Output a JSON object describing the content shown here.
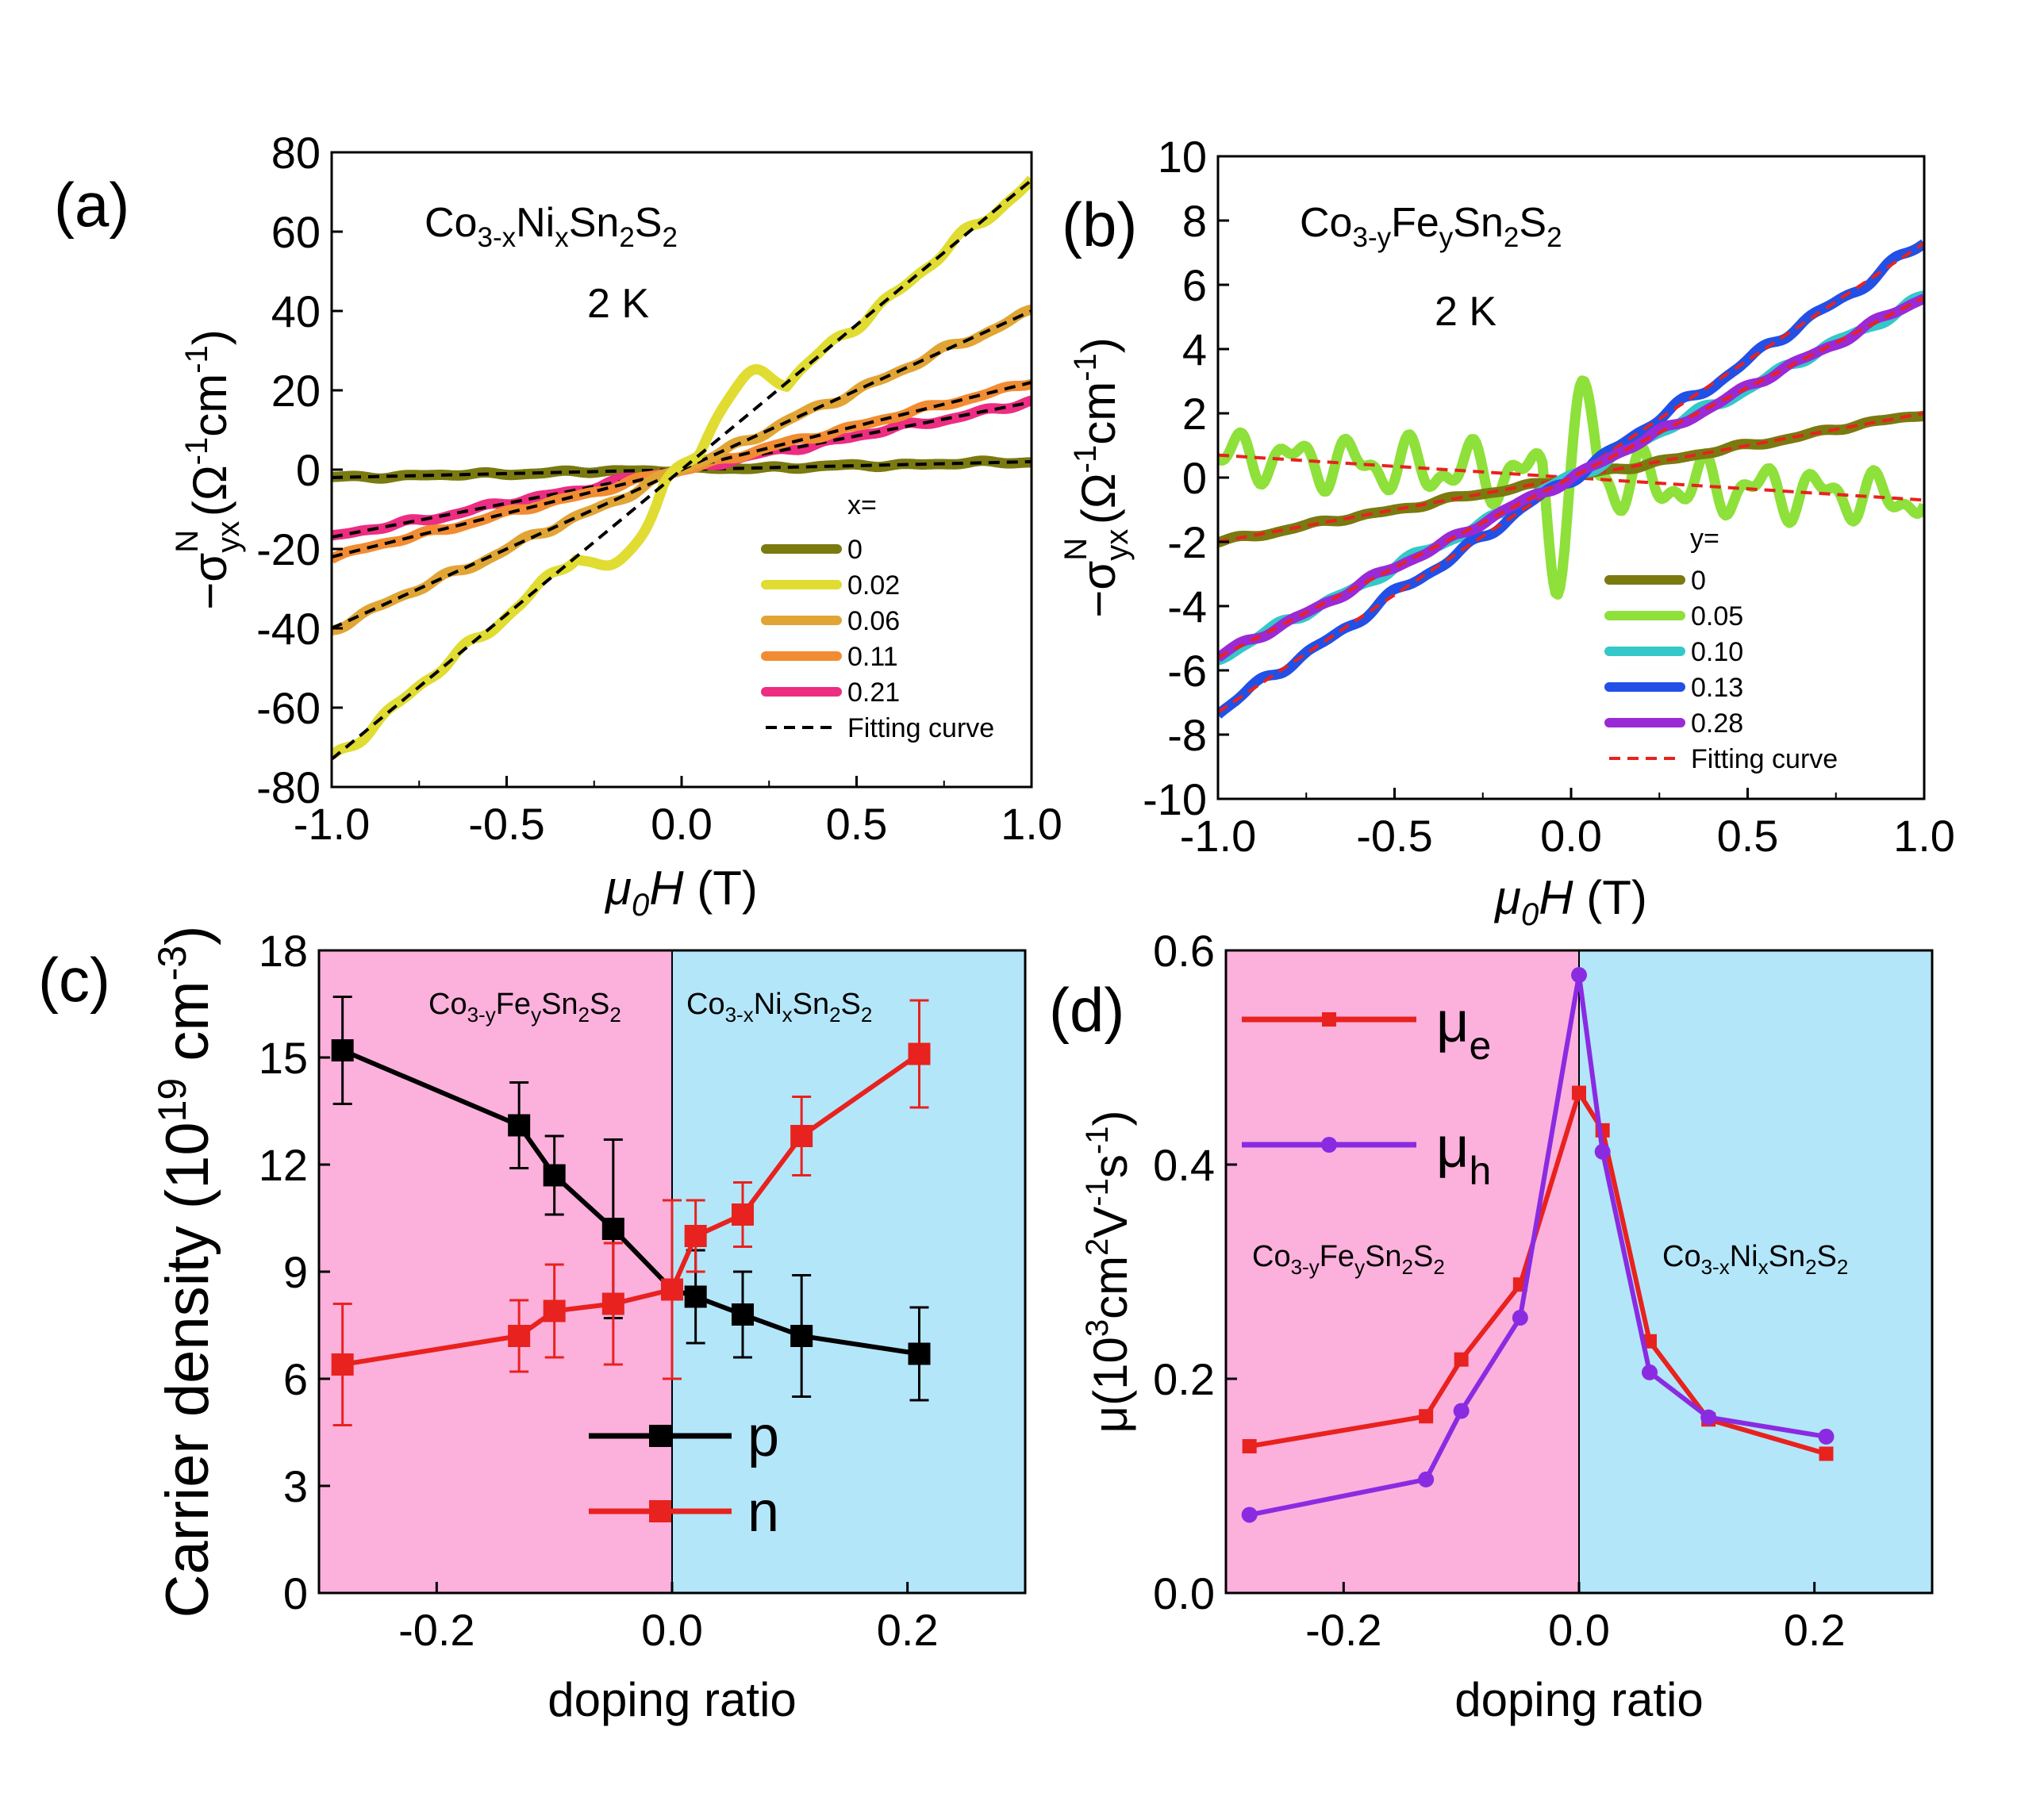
{
  "chart_data": [
    {
      "panel": "(a)",
      "type": "line",
      "xlabel": "μ0H (T)",
      "ylabel": "−σyxN (Ω−1cm−1)",
      "xlim": [
        -1.0,
        1.0
      ],
      "ylim": [
        -80,
        80
      ],
      "xticks": [
        "-1.0",
        "-0.5",
        "0.0",
        "0.5",
        "1.0"
      ],
      "yticks": [
        "-80",
        "-60",
        "-40",
        "-20",
        "0",
        "20",
        "40",
        "60",
        "80"
      ],
      "annotation_compound": [
        "Co",
        "3-x",
        "Ni",
        "x",
        "Sn",
        "2",
        "S",
        "2"
      ],
      "annotation_temp": "2 K",
      "legend_title": "x=",
      "series": [
        {
          "name": "0",
          "color": "#7a7a10",
          "slope": 2,
          "wiggle": 0.5
        },
        {
          "name": "0.02",
          "color": "#e0dc32",
          "slope": 73,
          "wiggle": 1.6
        },
        {
          "name": "0.06",
          "color": "#e1a535",
          "slope": 40,
          "wiggle": 1.0
        },
        {
          "name": "0.11",
          "color": "#f28c32",
          "slope": 22,
          "wiggle": 0.7
        },
        {
          "name": "0.21",
          "color": "#ec2d82",
          "slope": 17,
          "wiggle": 0.8
        }
      ],
      "fit_label": "Fitting curve",
      "fit_color": "#000000"
    },
    {
      "panel": "(b)",
      "type": "line",
      "xlabel": "μ0H (T)",
      "ylabel": "−σyxN (Ω−1cm−1)",
      "xlim": [
        -1.0,
        1.0
      ],
      "ylim": [
        -10,
        10
      ],
      "xticks": [
        "-1.0",
        "-0.5",
        "0.0",
        "0.5",
        "1.0"
      ],
      "yticks": [
        "-10",
        "-8",
        "-6",
        "-4",
        "-2",
        "0",
        "2",
        "4",
        "6",
        "8",
        "10"
      ],
      "annotation_compound": [
        "Co",
        "3-y",
        "Fe",
        "y",
        "Sn",
        "2",
        "S",
        "2"
      ],
      "annotation_temp": "2 K",
      "legend_title": "y=",
      "series": [
        {
          "name": "0",
          "color": "#7a7a10",
          "slope": 2.0,
          "wiggle": 0.08
        },
        {
          "name": "0.05",
          "color": "#8ee03a",
          "slope": -0.7,
          "wiggle": 1.0
        },
        {
          "name": "0.10",
          "color": "#35c8c8",
          "slope": 5.6,
          "wiggle": 0.15
        },
        {
          "name": "0.13",
          "color": "#2250e6",
          "slope": 7.3,
          "wiggle": 0.18
        },
        {
          "name": "0.28",
          "color": "#9a2ad6",
          "slope": 5.6,
          "wiggle": 0.12
        }
      ],
      "fit_label": "Fitting curve",
      "fit_color": "#e8221e"
    },
    {
      "panel": "(c)",
      "type": "line",
      "xlabel": "doping ratio",
      "ylabel": "Carrier density (10¹⁹ cm⁻³)",
      "xlim": [
        -0.3,
        0.3
      ],
      "ylim": [
        0,
        18
      ],
      "xticks": [
        "-0.2",
        "0.0",
        "0.2"
      ],
      "yticks": [
        "0",
        "3",
        "6",
        "9",
        "12",
        "15",
        "18"
      ],
      "region_left_label": [
        "Co",
        "3-y",
        "Fe",
        "y",
        "Sn",
        "2",
        "S",
        "2"
      ],
      "region_right_label": [
        "Co",
        "3-x",
        "Ni",
        "x",
        "Sn",
        "2",
        "S",
        "2"
      ],
      "region_colors": {
        "left": "#fcb0dc",
        "right": "#b4e6fa"
      },
      "x": [
        -0.28,
        -0.13,
        -0.1,
        -0.05,
        0.0,
        0.02,
        0.06,
        0.11,
        0.21
      ],
      "series": [
        {
          "name": "p",
          "color": "#000000",
          "values": [
            15.2,
            13.1,
            11.7,
            10.2,
            8.5,
            8.3,
            7.8,
            7.2,
            6.7
          ],
          "errors": [
            1.5,
            1.2,
            1.1,
            2.5,
            2.5,
            1.3,
            1.2,
            1.7,
            1.3
          ]
        },
        {
          "name": "n",
          "color": "#e8221e",
          "values": [
            6.4,
            7.2,
            7.9,
            8.1,
            8.5,
            10.0,
            10.6,
            12.8,
            15.1
          ],
          "errors": [
            1.7,
            1.0,
            1.3,
            1.7,
            2.5,
            1.0,
            0.9,
            1.1,
            1.5
          ]
        }
      ]
    },
    {
      "panel": "(d)",
      "type": "line",
      "xlabel": "doping ratio",
      "ylabel": "μ(10³cm²V⁻¹s⁻¹)",
      "xlim": [
        -0.3,
        0.3
      ],
      "ylim": [
        0.0,
        0.6
      ],
      "xticks": [
        "-0.2",
        "0.0",
        "0.2"
      ],
      "yticks": [
        "0.0",
        "0.2",
        "0.4",
        "0.6"
      ],
      "region_left_label": [
        "Co",
        "3-y",
        "Fe",
        "y",
        "Sn",
        "2",
        "S",
        "2"
      ],
      "region_right_label": [
        "Co",
        "3-x",
        "Ni",
        "x",
        "Sn",
        "2",
        "S",
        "2"
      ],
      "region_colors": {
        "left": "#fcb0dc",
        "right": "#b4e6fa"
      },
      "x": [
        -0.28,
        -0.13,
        -0.1,
        -0.05,
        0.0,
        0.02,
        0.06,
        0.11,
        0.21
      ],
      "series": [
        {
          "name": "μe",
          "base": "μ",
          "sub": "e",
          "color": "#e8221e",
          "marker": "square",
          "values": [
            0.137,
            0.165,
            0.218,
            0.288,
            0.467,
            0.432,
            0.235,
            0.162,
            0.13
          ]
        },
        {
          "name": "μh",
          "base": "μ",
          "sub": "h",
          "color": "#8a2be2",
          "marker": "circle",
          "values": [
            0.073,
            0.106,
            0.17,
            0.257,
            0.577,
            0.412,
            0.206,
            0.164,
            0.146
          ]
        }
      ]
    }
  ]
}
